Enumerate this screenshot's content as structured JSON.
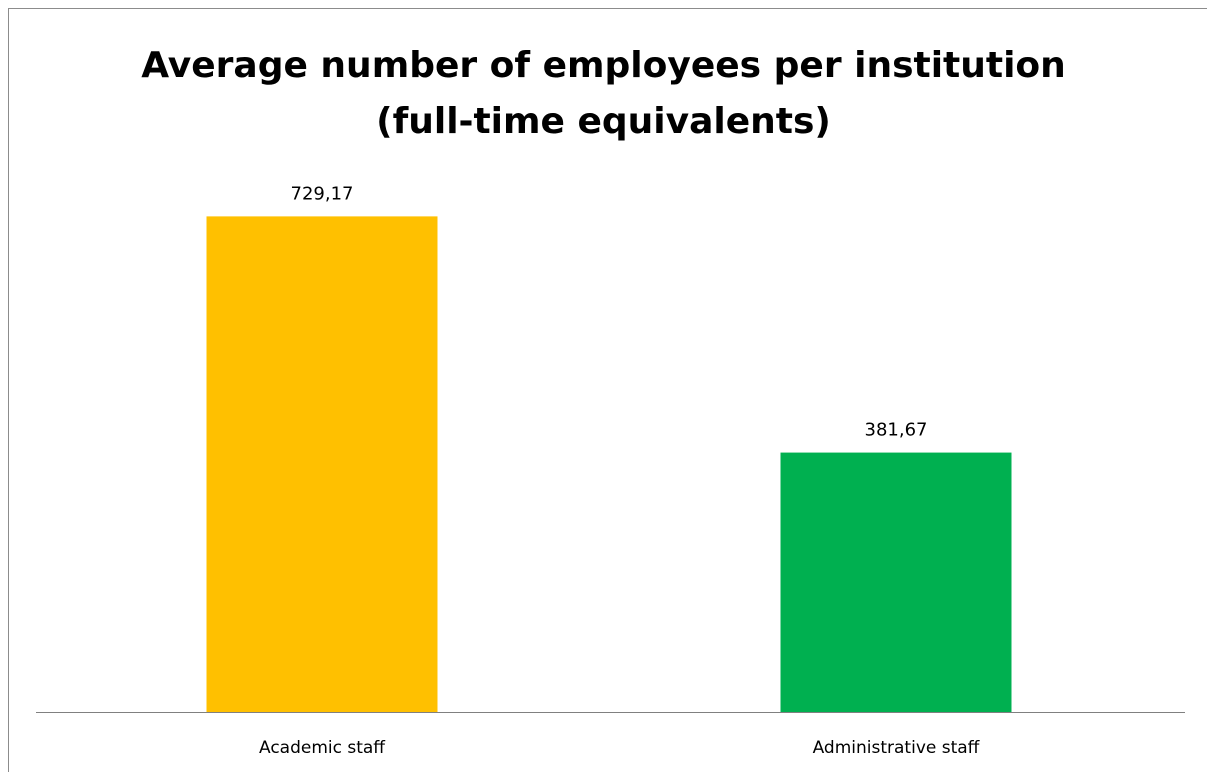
{
  "chart_data": {
    "type": "bar",
    "title": "Average number of employees per institution (full-time equivalents)",
    "title_lines": [
      "Average number of employees per institution",
      "(full-time equivalents)"
    ],
    "categories": [
      "Academic staff",
      "Administrative staff"
    ],
    "values": [
      729.17,
      381.67
    ],
    "data_labels": [
      "729,17",
      "381,67"
    ],
    "colors": [
      "#FFC000",
      "#00B050"
    ],
    "ylim": [
      0,
      800
    ],
    "grid": false,
    "legend": "none",
    "xlabel": "",
    "ylabel": ""
  }
}
